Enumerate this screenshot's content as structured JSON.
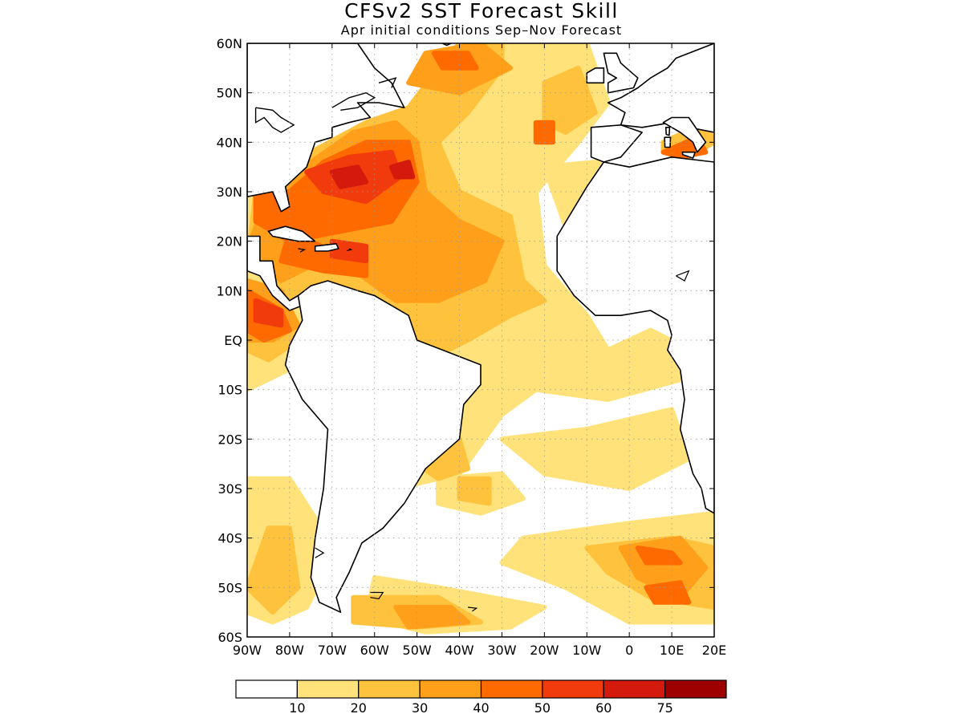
{
  "title": "CFSv2 SST Forecast Skill",
  "subtitle": "Apr initial conditions   Sep–Nov Forecast",
  "map": {
    "lon_range": [
      -90,
      20
    ],
    "lat_range": [
      -60,
      60
    ],
    "grid": true,
    "lat_ticks": [
      {
        "value": 60,
        "label": "60N"
      },
      {
        "value": 50,
        "label": "50N"
      },
      {
        "value": 40,
        "label": "40N"
      },
      {
        "value": 30,
        "label": "30N"
      },
      {
        "value": 20,
        "label": "20N"
      },
      {
        "value": 10,
        "label": "10N"
      },
      {
        "value": 0,
        "label": "EQ"
      },
      {
        "value": -10,
        "label": "10S"
      },
      {
        "value": -20,
        "label": "20S"
      },
      {
        "value": -30,
        "label": "30S"
      },
      {
        "value": -40,
        "label": "40S"
      },
      {
        "value": -50,
        "label": "50S"
      },
      {
        "value": -60,
        "label": "60S"
      }
    ],
    "lon_ticks": [
      {
        "value": -90,
        "label": "90W"
      },
      {
        "value": -80,
        "label": "80W"
      },
      {
        "value": -70,
        "label": "70W"
      },
      {
        "value": -60,
        "label": "60W"
      },
      {
        "value": -50,
        "label": "50W"
      },
      {
        "value": -40,
        "label": "40W"
      },
      {
        "value": -30,
        "label": "30W"
      },
      {
        "value": -20,
        "label": "20W"
      },
      {
        "value": -10,
        "label": "10W"
      },
      {
        "value": 0,
        "label": "0"
      },
      {
        "value": 10,
        "label": "10E"
      },
      {
        "value": 20,
        "label": "20E"
      }
    ]
  },
  "colorbar": {
    "colors": [
      "#ffffff",
      "#ffe27a",
      "#ffc23d",
      "#ff9f1a",
      "#ff6a00",
      "#f23b0c",
      "#d31a0c",
      "#9e0000"
    ],
    "labels": [
      "10",
      "20",
      "30",
      "40",
      "50",
      "60",
      "75"
    ]
  },
  "colors": {
    "land": "#ffffff",
    "coast": "#000000",
    "grid": "#9a9a9a"
  }
}
